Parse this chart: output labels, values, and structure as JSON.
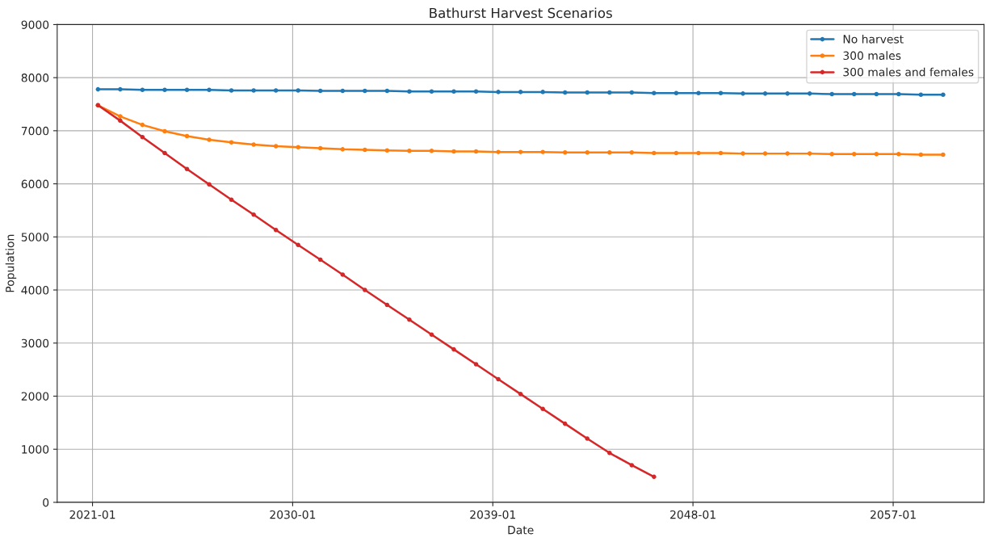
{
  "chart_data": {
    "type": "line",
    "title": "Bathurst Harvest Scenarios",
    "xlabel": "Date",
    "ylabel": "Population",
    "x": [
      "2021-04",
      "2022-04",
      "2023-04",
      "2024-04",
      "2025-04",
      "2026-04",
      "2027-04",
      "2028-04",
      "2029-04",
      "2030-04",
      "2031-04",
      "2032-04",
      "2033-04",
      "2034-04",
      "2035-04",
      "2036-04",
      "2037-04",
      "2038-04",
      "2039-04",
      "2040-04",
      "2041-04",
      "2042-04",
      "2043-04",
      "2044-04",
      "2045-04",
      "2046-04",
      "2047-04",
      "2048-04",
      "2049-04",
      "2050-04",
      "2051-04",
      "2052-04",
      "2053-04",
      "2054-04",
      "2055-04",
      "2056-04",
      "2057-04",
      "2058-04",
      "2059-04"
    ],
    "series": [
      {
        "name": "No harvest",
        "color": "#1f77b4",
        "values": [
          7780,
          7780,
          7770,
          7770,
          7770,
          7770,
          7760,
          7760,
          7760,
          7760,
          7750,
          7750,
          7750,
          7750,
          7740,
          7740,
          7740,
          7740,
          7730,
          7730,
          7730,
          7720,
          7720,
          7720,
          7720,
          7710,
          7710,
          7710,
          7710,
          7700,
          7700,
          7700,
          7700,
          7690,
          7690,
          7690,
          7690,
          7680,
          7680
        ]
      },
      {
        "name": "300 males",
        "color": "#ff7f0e",
        "values": [
          7480,
          7270,
          7110,
          6990,
          6900,
          6830,
          6780,
          6740,
          6710,
          6690,
          6670,
          6650,
          6640,
          6630,
          6620,
          6620,
          6610,
          6610,
          6600,
          6600,
          6600,
          6590,
          6590,
          6590,
          6590,
          6580,
          6580,
          6580,
          6580,
          6570,
          6570,
          6570,
          6570,
          6560,
          6560,
          6560,
          6560,
          6550,
          6550
        ]
      },
      {
        "name": "300 males and females",
        "color": "#d62728",
        "x": [
          "2021-04",
          "2022-04",
          "2023-04",
          "2024-04",
          "2025-04",
          "2026-04",
          "2027-04",
          "2028-04",
          "2029-04",
          "2030-04",
          "2031-04",
          "2032-04",
          "2033-04",
          "2034-04",
          "2035-04",
          "2036-04",
          "2037-04",
          "2038-04",
          "2039-04",
          "2040-04",
          "2041-04",
          "2042-04",
          "2043-04",
          "2044-04",
          "2045-04",
          "2046-04"
        ],
        "values": [
          7480,
          7190,
          6880,
          6580,
          6280,
          5990,
          5700,
          5420,
          5130,
          4850,
          4570,
          4290,
          4000,
          3720,
          3440,
          3160,
          2880,
          2600,
          2320,
          2040,
          1760,
          1480,
          1200,
          930,
          700,
          480
        ]
      }
    ],
    "xlim": [
      "2019-06",
      "2061-02"
    ],
    "xticks": [
      "2021-01",
      "2030-01",
      "2039-01",
      "2048-01",
      "2057-01"
    ],
    "ylim": [
      0,
      9000
    ],
    "yticks": [
      0,
      1000,
      2000,
      3000,
      4000,
      5000,
      6000,
      7000,
      8000,
      9000
    ],
    "grid": true,
    "legend": "top right",
    "marker": "circle",
    "line_style": "solid"
  }
}
